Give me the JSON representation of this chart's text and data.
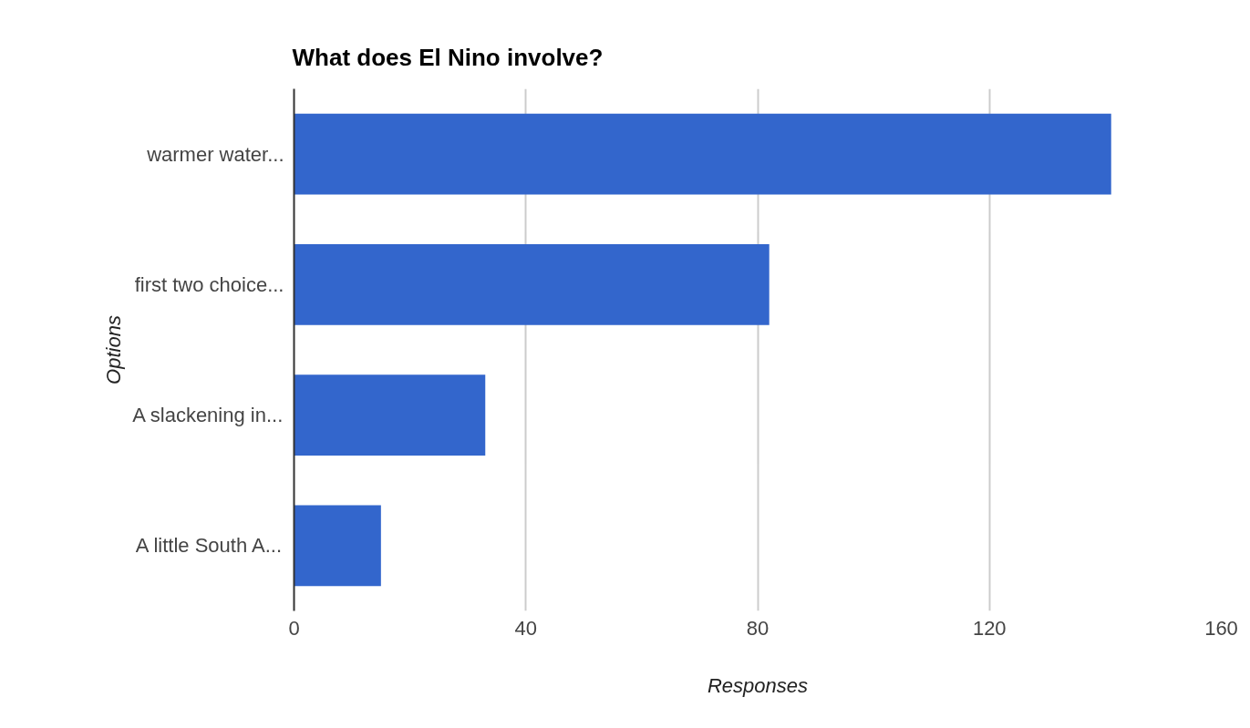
{
  "chart_data": {
    "type": "bar",
    "orientation": "horizontal",
    "title": "What does El Nino involve?",
    "xlabel": "Responses",
    "ylabel": "Options",
    "categories": [
      "warmer water...",
      "first two choice...",
      "A slackening in...",
      "A little South A..."
    ],
    "values": [
      141,
      82,
      33,
      15
    ],
    "color": "#3366cc",
    "xlim": [
      0,
      160
    ],
    "xticks": [
      0,
      40,
      80,
      120,
      160
    ],
    "grid": "x"
  }
}
